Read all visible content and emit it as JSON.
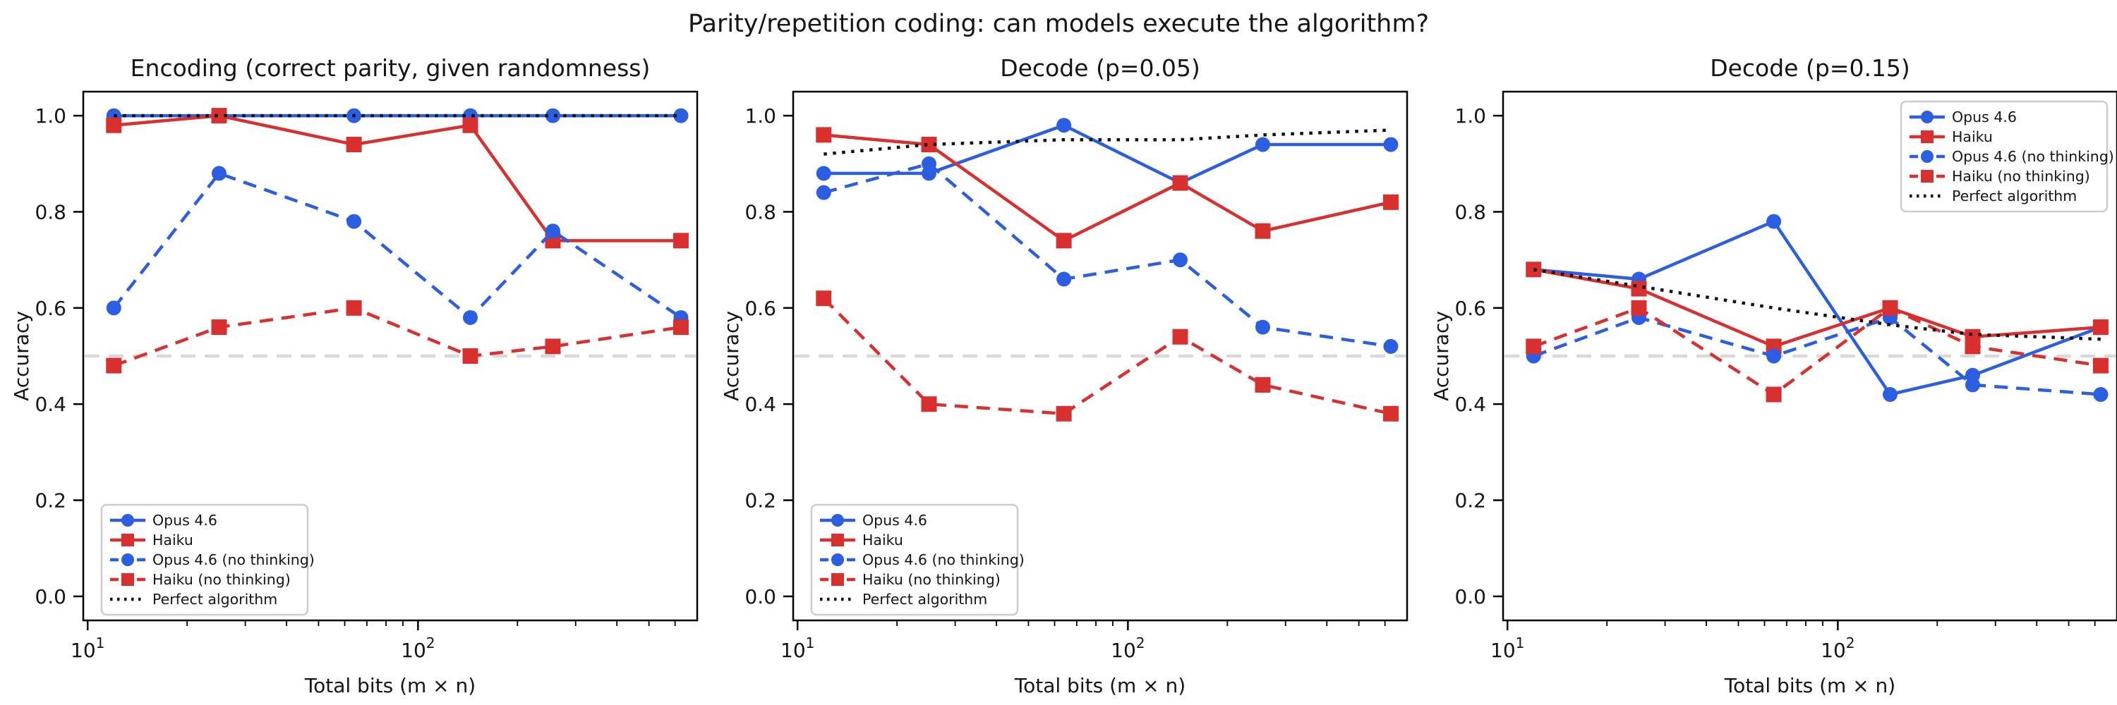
{
  "figure": {
    "suptitle": "Parity/repetition coding: can models execute the algorithm?",
    "background": "#ffffff"
  },
  "colors": {
    "blue": "#2b5ee0",
    "red": "#d7302e",
    "black": "#111111",
    "baseline_gray": "#d9d9d9",
    "axis": "#000000",
    "legend_border": "#cccccc",
    "text": "#151515"
  },
  "axes_config": {
    "xscale": "log",
    "xlim": [
      9.7,
      700
    ],
    "ylim": [
      -0.05,
      1.05
    ],
    "yticks": [
      0.0,
      0.2,
      0.4,
      0.6,
      0.8,
      1.0
    ],
    "xticks": [
      {
        "value": 10,
        "label": "10^1"
      },
      {
        "value": 100,
        "label": "10^2"
      }
    ],
    "minor_xticks": [
      20,
      30,
      40,
      50,
      60,
      70,
      80,
      90,
      200,
      300,
      400,
      500,
      600
    ],
    "xlabel": "Total bits (m × n)",
    "ylabel": "Accuracy",
    "chance_baseline": 0.5
  },
  "chart_data": [
    {
      "type": "line",
      "title": "Encoding (correct parity, given randomness)",
      "xlabel": "Total bits (m × n)",
      "ylabel": "Accuracy",
      "legend_position": "lower-left",
      "x": [
        12,
        25,
        64,
        144,
        256,
        625
      ],
      "series": [
        {
          "name": "Opus 4.6",
          "color": "blue",
          "line": "solid",
          "marker": "circle",
          "values": [
            1.0,
            1.0,
            1.0,
            1.0,
            1.0,
            1.0
          ]
        },
        {
          "name": "Haiku",
          "color": "red",
          "line": "solid",
          "marker": "square",
          "values": [
            0.98,
            1.0,
            0.94,
            0.98,
            0.74,
            0.74
          ]
        },
        {
          "name": "Opus 4.6 (no thinking)",
          "color": "blue",
          "line": "dashed",
          "marker": "circle",
          "values": [
            0.6,
            0.88,
            0.78,
            0.58,
            0.76,
            0.58
          ]
        },
        {
          "name": "Haiku (no thinking)",
          "color": "red",
          "line": "dashed",
          "marker": "square",
          "values": [
            0.48,
            0.56,
            0.6,
            0.5,
            0.52,
            0.56
          ]
        },
        {
          "name": "Perfect algorithm",
          "color": "black",
          "line": "dotted",
          "marker": "none",
          "values": [
            1.0,
            1.0,
            1.0,
            1.0,
            1.0,
            1.0
          ]
        }
      ]
    },
    {
      "type": "line",
      "title": "Decode (p=0.05)",
      "xlabel": "Total bits (m × n)",
      "ylabel": "Accuracy",
      "legend_position": "lower-left",
      "x": [
        12,
        25,
        64,
        144,
        256,
        625
      ],
      "series": [
        {
          "name": "Opus 4.6",
          "color": "blue",
          "line": "solid",
          "marker": "circle",
          "values": [
            0.88,
            0.88,
            0.98,
            0.86,
            0.94,
            0.94
          ]
        },
        {
          "name": "Haiku",
          "color": "red",
          "line": "solid",
          "marker": "square",
          "values": [
            0.96,
            0.94,
            0.74,
            0.86,
            0.76,
            0.82
          ]
        },
        {
          "name": "Opus 4.6 (no thinking)",
          "color": "blue",
          "line": "dashed",
          "marker": "circle",
          "values": [
            0.84,
            0.9,
            0.66,
            0.7,
            0.56,
            0.52
          ]
        },
        {
          "name": "Haiku (no thinking)",
          "color": "red",
          "line": "dashed",
          "marker": "square",
          "values": [
            0.62,
            0.4,
            0.38,
            0.54,
            0.44,
            0.38
          ]
        },
        {
          "name": "Perfect algorithm",
          "color": "black",
          "line": "dotted",
          "marker": "none",
          "values": [
            0.92,
            0.94,
            0.95,
            0.95,
            0.96,
            0.97
          ]
        }
      ]
    },
    {
      "type": "line",
      "title": "Decode (p=0.15)",
      "xlabel": "Total bits (m × n)",
      "ylabel": "Accuracy",
      "legend_position": "upper-right",
      "x": [
        12,
        25,
        64,
        144,
        256,
        625
      ],
      "series": [
        {
          "name": "Opus 4.6",
          "color": "blue",
          "line": "solid",
          "marker": "circle",
          "values": [
            0.68,
            0.66,
            0.78,
            0.42,
            0.46,
            0.56
          ]
        },
        {
          "name": "Haiku",
          "color": "red",
          "line": "solid",
          "marker": "square",
          "values": [
            0.68,
            0.64,
            0.52,
            0.6,
            0.54,
            0.56
          ]
        },
        {
          "name": "Opus 4.6 (no thinking)",
          "color": "blue",
          "line": "dashed",
          "marker": "circle",
          "values": [
            0.5,
            0.58,
            0.5,
            0.58,
            0.44,
            0.42
          ]
        },
        {
          "name": "Haiku (no thinking)",
          "color": "red",
          "line": "dashed",
          "marker": "square",
          "values": [
            0.52,
            0.6,
            0.42,
            0.6,
            0.52,
            0.48
          ]
        },
        {
          "name": "Perfect algorithm",
          "color": "black",
          "line": "dotted",
          "marker": "none",
          "values": [
            0.68,
            0.645,
            0.6,
            0.565,
            0.545,
            0.535
          ]
        }
      ]
    }
  ]
}
